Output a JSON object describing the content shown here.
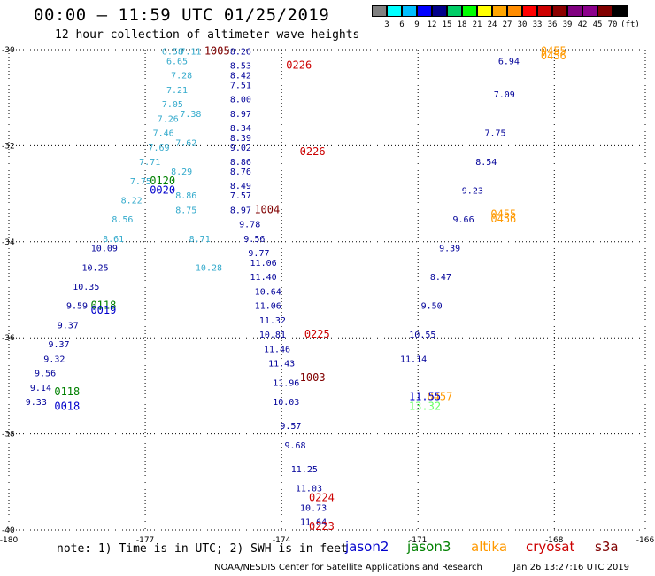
{
  "header": {
    "title": "00:00 – 11:59 UTC 01/25/2019",
    "subtitle": "12 hour collection of altimeter wave heights"
  },
  "legend": {
    "unit": "(ft)",
    "colors": [
      "#808080",
      "#00ffff",
      "#00bfff",
      "#0000ff",
      "#00008b",
      "#00cd66",
      "#00ff00",
      "#ffff00",
      "#ffa500",
      "#ff8c00",
      "#ff0000",
      "#cd0000",
      "#8b0000",
      "#800080",
      "#8b008b",
      "#800000",
      "#000000"
    ],
    "labels": [
      "3",
      "6",
      "9",
      "12",
      "15",
      "18",
      "21",
      "24",
      "27",
      "30",
      "33",
      "36",
      "39",
      "42",
      "45",
      "70"
    ]
  },
  "footer": {
    "note": "note: 1) Time is in UTC; 2) SWH is in feet",
    "satellites": [
      {
        "name": "jason2",
        "color": "#0000cc"
      },
      {
        "name": "jason3",
        "color": "#008000"
      },
      {
        "name": "altika",
        "color": "#ff9900"
      },
      {
        "name": "cryosat",
        "color": "#cc0000"
      },
      {
        "name": "s3a",
        "color": "#800000"
      }
    ],
    "credit": "NOAA/NESDIS Center for Satellite Applications and Research",
    "timestamp": "Jan 26 13:27:16 UTC 2019"
  },
  "chart_data": {
    "type": "scatter",
    "xlim": [
      -180,
      -166
    ],
    "ylim": [
      -40,
      -30
    ],
    "xticks": [
      -180,
      -177,
      -174,
      -171,
      -168,
      -166
    ],
    "yticks": [
      -30,
      -32,
      -34,
      -36,
      -38,
      -40
    ],
    "grid": "dotted",
    "tracks": [
      {
        "name": "track-a",
        "color": "#33aacc",
        "points": [
          [
            -176.4,
            -30.1,
            "6.58"
          ],
          [
            -176.3,
            -30.3,
            "6.65"
          ],
          [
            -176.2,
            -30.6,
            "7.28"
          ],
          [
            -176.3,
            -30.9,
            "7.21"
          ],
          [
            -176.4,
            -31.2,
            "7.05"
          ],
          [
            -176.5,
            -31.5,
            "7.26"
          ],
          [
            -176.6,
            -31.8,
            "7.46"
          ],
          [
            -176.7,
            -32.1,
            "7.69"
          ],
          [
            -176.9,
            -32.4,
            "7.71"
          ],
          [
            -177.1,
            -32.8,
            "7.75"
          ],
          [
            -177.3,
            -33.2,
            "8.22"
          ],
          [
            -177.5,
            -33.6,
            "8.56"
          ],
          [
            -177.7,
            -34.0,
            "8.61"
          ]
        ]
      },
      {
        "name": "track-b",
        "color": "#000099",
        "points": [
          [
            -177.9,
            -34.2,
            "10.09"
          ],
          [
            -178.1,
            -34.6,
            "10.25"
          ],
          [
            -178.3,
            -35.0,
            "10.35"
          ],
          [
            -178.5,
            -35.4,
            "9.59"
          ],
          [
            -178.7,
            -35.8,
            "9.37"
          ],
          [
            -178.9,
            -36.2,
            "9.37"
          ],
          [
            -179.0,
            -36.5,
            "9.32"
          ],
          [
            -179.2,
            -36.8,
            "9.56"
          ],
          [
            -179.3,
            -37.1,
            "9.14"
          ],
          [
            -179.4,
            -37.4,
            "9.33"
          ]
        ]
      },
      {
        "name": "track-c",
        "color": "#000099",
        "points": [
          [
            -174.9,
            -30.1,
            "8.26"
          ],
          [
            -174.9,
            -30.4,
            "8.53"
          ],
          [
            -174.9,
            -30.6,
            "8.42"
          ],
          [
            -174.9,
            -30.8,
            "7.51"
          ],
          [
            -174.9,
            -31.1,
            "8.00"
          ],
          [
            -174.9,
            -31.4,
            "8.97"
          ],
          [
            -174.9,
            -31.7,
            "8.34"
          ],
          [
            -174.9,
            -31.9,
            "8.39"
          ],
          [
            -174.9,
            -32.1,
            "9.02"
          ],
          [
            -174.9,
            -32.4,
            "8.86"
          ],
          [
            -174.9,
            -32.6,
            "8.76"
          ],
          [
            -174.9,
            -32.9,
            "8.49"
          ],
          [
            -174.9,
            -33.1,
            "7.57"
          ],
          [
            -174.9,
            -33.4,
            "8.97"
          ],
          [
            -174.7,
            -33.7,
            "9.78"
          ],
          [
            -174.6,
            -34.0,
            "9.56"
          ],
          [
            -174.5,
            -34.3,
            "9.77"
          ],
          [
            -174.4,
            -34.5,
            "11.06"
          ],
          [
            -174.4,
            -34.8,
            "11.40"
          ],
          [
            -174.3,
            -35.1,
            "10.64"
          ],
          [
            -174.3,
            -35.4,
            "11.06"
          ],
          [
            -174.2,
            -35.7,
            "11.32"
          ],
          [
            -174.2,
            -36.0,
            "10.81"
          ],
          [
            -174.1,
            -36.3,
            "11.46"
          ],
          [
            -174.0,
            -36.6,
            "11.43"
          ],
          [
            -173.9,
            -37.0,
            "11.96"
          ],
          [
            -173.9,
            -37.4,
            "10.03"
          ],
          [
            -173.8,
            -37.9,
            "9.57"
          ],
          [
            -173.7,
            -38.3,
            "9.68"
          ],
          [
            -173.5,
            -38.8,
            "11.25"
          ],
          [
            -173.4,
            -39.2,
            "11.03"
          ],
          [
            -173.3,
            -39.6,
            "10.73"
          ],
          [
            -173.3,
            -39.9,
            "11.64"
          ]
        ]
      },
      {
        "name": "track-d",
        "color": "#33aacc",
        "points": [
          [
            -176.0,
            -30.1,
            "7.11"
          ],
          [
            -176.0,
            -31.4,
            "7.38"
          ],
          [
            -176.1,
            -32.0,
            "7.62"
          ],
          [
            -176.2,
            -32.6,
            "8.29"
          ],
          [
            -176.1,
            -33.1,
            "8.86"
          ],
          [
            -176.1,
            -33.4,
            "8.75"
          ],
          [
            -175.8,
            -34.0,
            "8.71"
          ],
          [
            -175.6,
            -34.6,
            "10.28"
          ]
        ]
      },
      {
        "name": "track-e",
        "color": "#000099",
        "points": [
          [
            -169.0,
            -30.3,
            "6.94"
          ],
          [
            -169.1,
            -31.0,
            "7.09"
          ],
          [
            -169.3,
            -31.8,
            "7.75"
          ],
          [
            -169.5,
            -32.4,
            "8.54"
          ],
          [
            -169.8,
            -33.0,
            "9.23"
          ],
          [
            -170.0,
            -33.6,
            "9.66"
          ],
          [
            -170.3,
            -34.2,
            "9.39"
          ],
          [
            -170.5,
            -34.8,
            "8.47"
          ],
          [
            -170.7,
            -35.4,
            "9.50"
          ],
          [
            -170.9,
            -36.0,
            "10.55"
          ],
          [
            -171.1,
            -36.5,
            "11.14"
          ]
        ]
      }
    ],
    "time_labels": [
      {
        "text": "1005",
        "x": -175.7,
        "y": -30.1,
        "color": "#800000"
      },
      {
        "text": "0226",
        "x": -173.9,
        "y": -30.4,
        "color": "#cc0000"
      },
      {
        "text": "0226",
        "x": -173.6,
        "y": -32.2,
        "color": "#cc0000"
      },
      {
        "text": "0120",
        "x": -176.9,
        "y": -32.8,
        "color": "#008000"
      },
      {
        "text": "0020",
        "x": -176.9,
        "y": -33.0,
        "color": "#0000cc"
      },
      {
        "text": "1004",
        "x": -174.6,
        "y": -33.4,
        "color": "#800000"
      },
      {
        "text": "0455",
        "x": -168.3,
        "y": -30.1,
        "color": "#ff9900"
      },
      {
        "text": "0456",
        "x": -168.3,
        "y": -30.2,
        "color": "#ff9900"
      },
      {
        "text": "0456",
        "x": -169.4,
        "y": -33.6,
        "color": "#ff9900"
      },
      {
        "text": "0455",
        "x": -169.4,
        "y": -33.5,
        "color": "#ff9900"
      },
      {
        "text": "0118",
        "x": -178.2,
        "y": -35.4,
        "color": "#008000"
      },
      {
        "text": "0019",
        "x": -178.2,
        "y": -35.5,
        "color": "#0000cc"
      },
      {
        "text": "0225",
        "x": -173.5,
        "y": -36.0,
        "color": "#cc0000"
      },
      {
        "text": "1003",
        "x": -173.6,
        "y": -36.9,
        "color": "#800000"
      },
      {
        "text": "0118",
        "x": -179.0,
        "y": -37.2,
        "color": "#008000"
      },
      {
        "text": "0018",
        "x": -179.0,
        "y": -37.5,
        "color": "#0000cc"
      },
      {
        "text": "0457",
        "x": -170.8,
        "y": -37.3,
        "color": "#ff9900"
      },
      {
        "text": "11.55",
        "x": -171.2,
        "y": -37.3,
        "color": "#0000cc"
      },
      {
        "text": "13.32",
        "x": -171.2,
        "y": -37.5,
        "color": "#66ff66"
      },
      {
        "text": "0224",
        "x": -173.4,
        "y": -39.4,
        "color": "#cc0000"
      },
      {
        "text": "0223",
        "x": -173.4,
        "y": -40.0,
        "color": "#cc0000"
      }
    ]
  }
}
